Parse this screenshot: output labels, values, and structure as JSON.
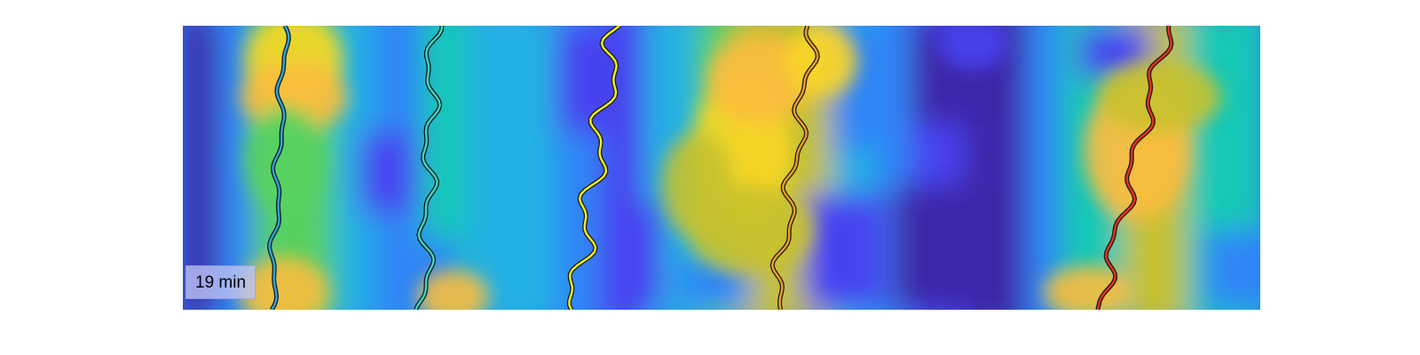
{
  "overlay": {
    "time_label": "19 min"
  },
  "colormap": [
    "#3e26a8",
    "#4743f0",
    "#2f86f6",
    "#22b1e4",
    "#14c8b6",
    "#57d160",
    "#c6c12e",
    "#fcbc3d",
    "#fad623"
  ],
  "traces": [
    {
      "id": "trace-1",
      "color": "#2aa7de"
    },
    {
      "id": "trace-2",
      "color": "#3fd6c2"
    },
    {
      "id": "trace-3",
      "color": "#f2f21a"
    },
    {
      "id": "trace-4",
      "color": "#f5a020"
    },
    {
      "id": "trace-5",
      "color": "#e8321a"
    }
  ]
}
